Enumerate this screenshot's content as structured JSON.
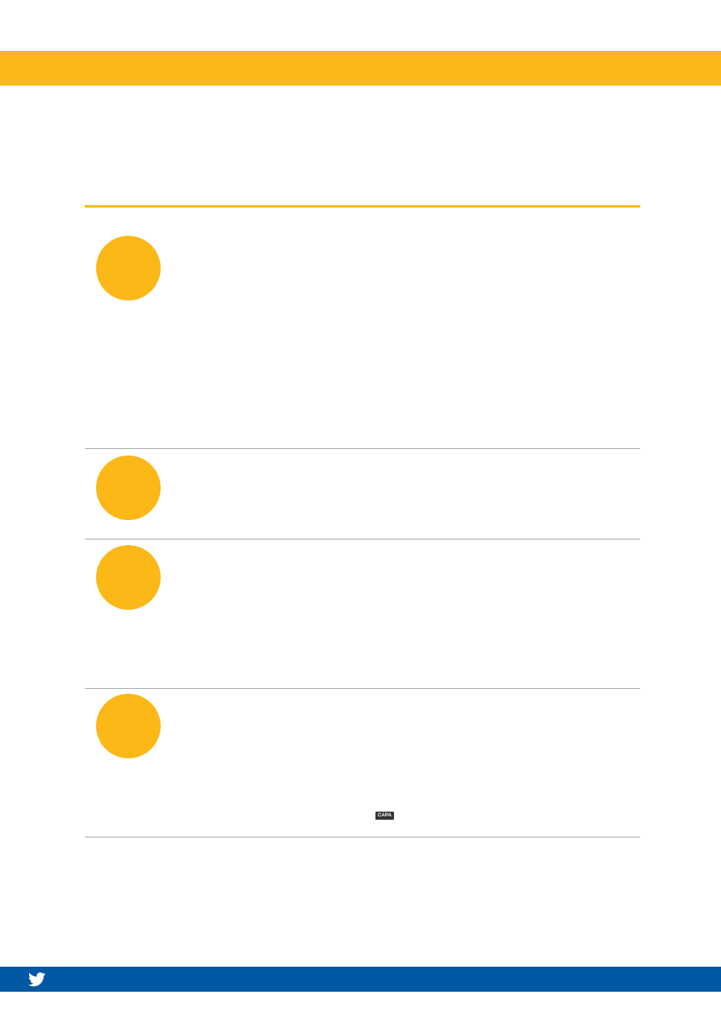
{
  "colors": {
    "accent": "#fbb817",
    "footer": "#0057a3",
    "divider": "#a7a9ac"
  },
  "steps": [
    {
      "icon": "step-badge"
    },
    {
      "icon": "step-badge"
    },
    {
      "icon": "step-badge"
    },
    {
      "icon": "step-badge"
    }
  ],
  "capa_logo": {
    "text": "CAPA"
  },
  "footer": {
    "social_icon": "twitter-icon"
  }
}
